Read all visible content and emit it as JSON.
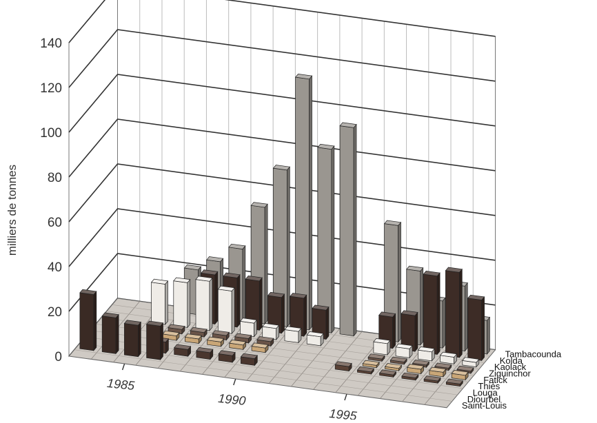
{
  "chart_data": {
    "type": "bar",
    "title": "",
    "ylabel": "milliers de tonnes",
    "ylim": [
      0,
      140
    ],
    "y_ticks": [
      "0",
      "20",
      "40",
      "60",
      "80",
      "100",
      "120",
      "140"
    ],
    "x_ticks": [
      "1985",
      "1990",
      "1995"
    ],
    "years": [
      1983,
      1984,
      1985,
      1986,
      1987,
      1988,
      1989,
      1990,
      1991,
      1992,
      1993,
      1994,
      1995,
      1996,
      1997,
      1998,
      1999
    ],
    "regions": [
      "Saint-Louis",
      "Diourbel",
      "Louga",
      "Thiès",
      "Fatick",
      "Ziguinchor",
      "Kaolack",
      "Kolda",
      "Tambacounda"
    ],
    "grid": true,
    "colors": {
      "Tambacounda": "#9a9690",
      "Kolda": "#3d2c26",
      "Kaolack": "#efece7",
      "Ziguinchor": "#6a5448",
      "Fatick": "#c9a677",
      "Thiès": "#5a4236",
      "Louga": "#4a362e",
      "Diourbel": "#3a2a24",
      "Saint-Louis": "#8a6a4a"
    },
    "series": [
      {
        "name": "Saint-Louis",
        "values": [
          null,
          null,
          null,
          null,
          null,
          null,
          null,
          null,
          null,
          null,
          null,
          null,
          null,
          null,
          null,
          null,
          null
        ]
      },
      {
        "name": "Diourbel",
        "values": [
          25,
          16,
          14,
          15,
          null,
          null,
          null,
          null,
          null,
          null,
          null,
          null,
          null,
          null,
          null,
          null,
          null
        ]
      },
      {
        "name": "Louga",
        "values": [
          null,
          null,
          null,
          5,
          3,
          3,
          3,
          3,
          null,
          null,
          null,
          null,
          null,
          null,
          null,
          null,
          null
        ]
      },
      {
        "name": "Thiès",
        "values": [
          null,
          null,
          null,
          null,
          null,
          null,
          null,
          null,
          null,
          null,
          null,
          2,
          1,
          1,
          1,
          1,
          1
        ]
      },
      {
        "name": "Fatick",
        "values": [
          null,
          null,
          null,
          2,
          2,
          2,
          2,
          2,
          null,
          null,
          null,
          null,
          1,
          1,
          2,
          2,
          2
        ]
      },
      {
        "name": "Ziguinchor",
        "values": [
          null,
          null,
          null,
          2,
          2,
          2,
          2,
          2,
          null,
          null,
          null,
          null,
          1,
          1,
          1,
          1,
          1
        ]
      },
      {
        "name": "Kaolack",
        "values": [
          null,
          null,
          18,
          20,
          22,
          19,
          6,
          5,
          5,
          4,
          null,
          null,
          5,
          4,
          4,
          3,
          2
        ]
      },
      {
        "name": "Kolda",
        "values": [
          null,
          null,
          null,
          null,
          22,
          22,
          22,
          16,
          17,
          13,
          null,
          null,
          14,
          16,
          35,
          38,
          27
        ]
      },
      {
        "name": "Tambacounda",
        "values": [
          null,
          null,
          null,
          20,
          25,
          32,
          52,
          70,
          112,
          82,
          93,
          null,
          52,
          33,
          21,
          29,
          15
        ]
      }
    ]
  }
}
